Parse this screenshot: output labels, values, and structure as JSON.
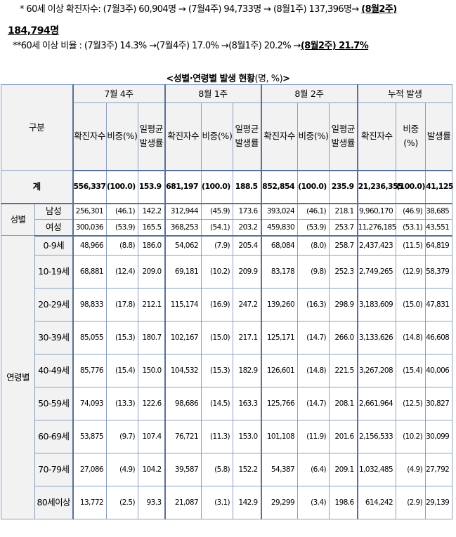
{
  "notes": {
    "line1": "* 60세 이상 확진자수: (7월3주) 60,904명 → (7월4주) 94,733명 →  (8월1주) 137,396명→ ",
    "line1_emph": "(8월2주)",
    "line1_value": "184,794명",
    "line2": "**60세 이상 비율 : (7월3주) 14.3% →(7월4주) 17.0% →(8월1주) 20.2% →",
    "line2_emph": "(8월2주) 21.7%"
  },
  "caption": {
    "title": "<성별·연령별 발생 현황",
    "unit": "(명, %)",
    "close": ">"
  },
  "table": {
    "corner_label": "구분",
    "periods": [
      "7월 4주",
      "8월 1주",
      "8월 2주",
      "누적 발생"
    ],
    "col_headers": [
      "확진자수",
      "비중(%)",
      "일평균발생률",
      "확진자수",
      "비중(%)",
      "일평균발생률",
      "확진자수",
      "비중(%)",
      "일평균발생률",
      "확진자수",
      "비중(%)",
      "발생률"
    ],
    "total": {
      "label": "계",
      "values": [
        "556,337",
        "(100.0)",
        "153.9",
        "681,197",
        "(100.0)",
        "188.5",
        "852,854",
        "(100.0)",
        "235.9",
        "21,236,355",
        "(100.0)",
        "41,125"
      ]
    },
    "sex": {
      "label": "성별",
      "rows": [
        {
          "label": "남성",
          "values": [
            "256,301",
            "(46.1)",
            "142.2",
            "312,944",
            "(45.9)",
            "173.6",
            "393,024",
            "(46.1)",
            "218.1",
            "9,960,170",
            "(46.9)",
            "38,685"
          ]
        },
        {
          "label": "여성",
          "values": [
            "300,036",
            "(53.9)",
            "165.5",
            "368,253",
            "(54.1)",
            "203.2",
            "459,830",
            "(53.9)",
            "253.7",
            "11,276,185",
            "(53.1)",
            "43,551"
          ]
        }
      ]
    },
    "age": {
      "label": "연령별",
      "rows": [
        {
          "label": "0-9세",
          "values": [
            "48,966",
            "(8.8)",
            "186.0",
            "54,062",
            "(7.9)",
            "205.4",
            "68,084",
            "(8.0)",
            "258.7",
            "2,437,423",
            "(11.5)",
            "64,819"
          ]
        },
        {
          "label": "10-19세",
          "values": [
            "68,881",
            "(12.4)",
            "209.0",
            "69,181",
            "(10.2)",
            "209.9",
            "83,178",
            "(9.8)",
            "252.3",
            "2,749,265",
            "(12.9)",
            "58,379"
          ]
        },
        {
          "label": "20-29세",
          "values": [
            "98,833",
            "(17.8)",
            "212.1",
            "115,174",
            "(16.9)",
            "247.2",
            "139,260",
            "(16.3)",
            "298.9",
            "3,183,609",
            "(15.0)",
            "47,831"
          ]
        },
        {
          "label": "30-39세",
          "values": [
            "85,055",
            "(15.3)",
            "180.7",
            "102,167",
            "(15.0)",
            "217.1",
            "125,171",
            "(14.7)",
            "266.0",
            "3,133,626",
            "(14.8)",
            "46,608"
          ]
        },
        {
          "label": "40-49세",
          "values": [
            "85,776",
            "(15.4)",
            "150.0",
            "104,532",
            "(15.3)",
            "182.9",
            "126,601",
            "(14.8)",
            "221.5",
            "3,267,208",
            "(15.4)",
            "40,006"
          ]
        },
        {
          "label": "50-59세",
          "values": [
            "74,093",
            "(13.3)",
            "122.6",
            "98,686",
            "(14.5)",
            "163.3",
            "125,766",
            "(14.7)",
            "208.1",
            "2,661,964",
            "(12.5)",
            "30,827"
          ]
        },
        {
          "label": "60-69세",
          "values": [
            "53,875",
            "(9.7)",
            "107.4",
            "76,721",
            "(11.3)",
            "153.0",
            "101,108",
            "(11.9)",
            "201.6",
            "2,156,533",
            "(10.2)",
            "30,099"
          ]
        },
        {
          "label": "70-79세",
          "values": [
            "27,086",
            "(4.9)",
            "104.2",
            "39,587",
            "(5.8)",
            "152.2",
            "54,387",
            "(6.4)",
            "209.1",
            "1,032,485",
            "(4.9)",
            "27,792"
          ]
        },
        {
          "label": "80세이상",
          "values": [
            "13,772",
            "(2.5)",
            "93.3",
            "21,087",
            "(3.1)",
            "142.9",
            "29,299",
            "(3.4)",
            "198.6",
            "614,242",
            "(2.9)",
            "29,139"
          ]
        }
      ]
    }
  }
}
